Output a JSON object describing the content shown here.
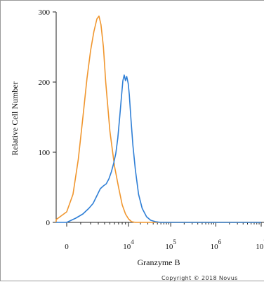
{
  "chart_data": {
    "type": "line",
    "xlabel": "Granzyme B",
    "ylabel": "Relative Cell Number",
    "ylim": [
      0,
      300
    ],
    "y_ticks": [
      "0",
      "100",
      "200",
      "300"
    ],
    "x_scale": "biexponential",
    "x_ticks": [
      {
        "base": "0",
        "exp": ""
      },
      {
        "base": "10",
        "exp": "4"
      },
      {
        "base": "10",
        "exp": "5"
      },
      {
        "base": "10",
        "exp": "6"
      },
      {
        "base": "10",
        "exp": "7"
      }
    ],
    "grid": false,
    "series": [
      {
        "color": "#f0962e",
        "points": [
          [
            -2000,
            0
          ],
          [
            -800,
            4
          ],
          [
            0,
            15
          ],
          [
            400,
            40
          ],
          [
            800,
            90
          ],
          [
            1200,
            150
          ],
          [
            1600,
            205
          ],
          [
            2000,
            245
          ],
          [
            2400,
            272
          ],
          [
            2800,
            290
          ],
          [
            3100,
            294
          ],
          [
            3400,
            282
          ],
          [
            3800,
            250
          ],
          [
            4200,
            200
          ],
          [
            5000,
            130
          ],
          [
            6000,
            80
          ],
          [
            7000,
            50
          ],
          [
            8000,
            25
          ],
          [
            9000,
            12
          ],
          [
            10000,
            5
          ],
          [
            12000,
            1
          ],
          [
            15000,
            0
          ],
          [
            20000,
            0
          ],
          [
            50000,
            0
          ],
          [
            100000,
            0
          ],
          [
            1000000,
            0
          ],
          [
            10000000,
            0
          ]
        ]
      },
      {
        "color": "#2f7fd6",
        "points": [
          [
            -2000,
            0
          ],
          [
            0,
            0
          ],
          [
            600,
            6
          ],
          [
            1200,
            12
          ],
          [
            1800,
            20
          ],
          [
            2300,
            27
          ],
          [
            2800,
            38
          ],
          [
            3300,
            48
          ],
          [
            3800,
            52
          ],
          [
            4300,
            55
          ],
          [
            4800,
            62
          ],
          [
            5300,
            72
          ],
          [
            5800,
            84
          ],
          [
            6300,
            98
          ],
          [
            6800,
            120
          ],
          [
            7300,
            150
          ],
          [
            7800,
            180
          ],
          [
            8200,
            202
          ],
          [
            8600,
            210
          ],
          [
            9000,
            202
          ],
          [
            9400,
            208
          ],
          [
            9900,
            198
          ],
          [
            10500,
            182
          ],
          [
            11500,
            150
          ],
          [
            13000,
            110
          ],
          [
            15000,
            75
          ],
          [
            18000,
            40
          ],
          [
            22000,
            20
          ],
          [
            28000,
            8
          ],
          [
            35000,
            3
          ],
          [
            45000,
            1
          ],
          [
            60000,
            0
          ],
          [
            100000,
            0
          ],
          [
            1000000,
            0
          ],
          [
            10000000,
            0
          ]
        ]
      }
    ]
  },
  "copyright": "Copyright © 2018 Novus"
}
